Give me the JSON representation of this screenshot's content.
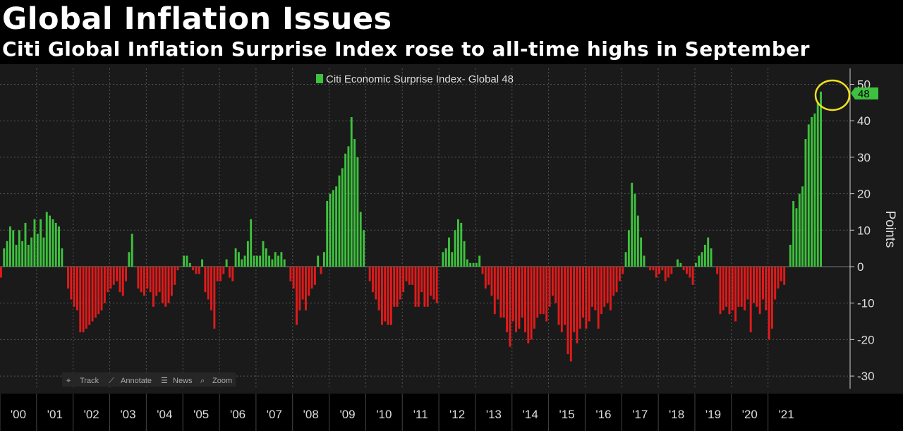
{
  "title": "Global Inflation Issues",
  "subtitle": "Citi Global Inflation Surprise Index rose to all-time highs in September",
  "toolbar": {
    "track_label": "Track",
    "annotate_label": "Annotate",
    "news_label": "News",
    "zoom_label": "Zoom"
  },
  "colors": {
    "background": "#1a1a1a",
    "positive": "#3ec13e",
    "negative": "#e01b1b",
    "highlight_circle": "#f0e020",
    "grid": "#555555"
  },
  "chart_data": {
    "type": "bar",
    "legend": {
      "label": "Citi Economic Surprise Index- Global 48",
      "placement": "top-center"
    },
    "ylabel": "Points",
    "ylim": [
      -33,
      53
    ],
    "y_ticks": [
      50,
      40,
      30,
      20,
      10,
      0,
      -10,
      -20,
      -30
    ],
    "x_tick_labels": [
      "'00",
      "'01",
      "'02",
      "'03",
      "'04",
      "'05",
      "'06",
      "'07",
      "'08",
      "'09",
      "'10",
      "'11",
      "'12",
      "'13",
      "'14",
      "'15",
      "'16",
      "'17",
      "'18",
      "'19",
      "'20",
      "'21"
    ],
    "x_start_year": 2000,
    "grid": true,
    "last_value_label": "48",
    "annotation": "circle around latest value",
    "values": [
      -3,
      5,
      7,
      11,
      10,
      6,
      10,
      7,
      12,
      6,
      8,
      13,
      9,
      13,
      8,
      15,
      14,
      13,
      12,
      11,
      5,
      0,
      -6,
      -9,
      -11,
      -12,
      -18,
      -18,
      -17,
      -16,
      -15,
      -14,
      -13,
      -12,
      -10,
      -7,
      -6,
      -5,
      -4,
      -7,
      -8,
      -4,
      4,
      9,
      0,
      -6,
      -7,
      -8,
      -6,
      -7,
      -11,
      -8,
      -7,
      -10,
      -11,
      -10,
      -8,
      -5,
      -1,
      0,
      3,
      3,
      1,
      -1,
      -2,
      -2,
      2,
      -7,
      -9,
      -12,
      -17,
      -4,
      -4,
      -2,
      2,
      -3,
      -4,
      5,
      4,
      2,
      3,
      7,
      13,
      3,
      3,
      3,
      7,
      5,
      3,
      2,
      4,
      3,
      4,
      2,
      0,
      -4,
      -6,
      -16,
      -12,
      -9,
      -12,
      -8,
      -6,
      -5,
      3,
      -2,
      4,
      18,
      20,
      21,
      22,
      25,
      27,
      31,
      33,
      41,
      35,
      30,
      15,
      10,
      0,
      -4,
      -7,
      -9,
      -12,
      -16,
      -15,
      -16,
      -16,
      -11,
      -11,
      -9,
      -7,
      -4,
      -5,
      -5,
      -11,
      -11,
      -7,
      -11,
      -11,
      -8,
      -9,
      -10,
      0,
      4,
      5,
      8,
      4,
      10,
      13,
      12,
      7,
      2,
      1,
      1,
      1,
      3,
      -2,
      -6,
      -5,
      -8,
      -13,
      -9,
      -14,
      -14,
      -18,
      -22,
      -15,
      -18,
      -17,
      -14,
      -18,
      -21,
      -20,
      -17,
      -14,
      -13,
      -13,
      -15,
      -11,
      -8,
      -10,
      -16,
      -18,
      -16,
      -24,
      -26,
      -18,
      -21,
      -17,
      -14,
      -17,
      -15,
      -11,
      -12,
      -17,
      -13,
      -11,
      -10,
      -12,
      -8,
      -7,
      -4,
      -2,
      4,
      10,
      23,
      20,
      14,
      8,
      3,
      0,
      -1,
      -1,
      -3,
      -2,
      -1,
      -4,
      -3,
      -2,
      0,
      2,
      1,
      -1,
      -2,
      -3,
      -5,
      1,
      3,
      4,
      6,
      8,
      5,
      0,
      -2,
      -13,
      -12,
      -11,
      -13,
      -12,
      -15,
      -11,
      -11,
      -12,
      -9,
      -18,
      -10,
      -11,
      -13,
      -9,
      -12,
      -20,
      -17,
      -9,
      -6,
      -4,
      -5,
      0,
      6,
      18,
      16,
      20,
      22,
      35,
      39,
      41,
      42,
      45,
      48
    ]
  }
}
